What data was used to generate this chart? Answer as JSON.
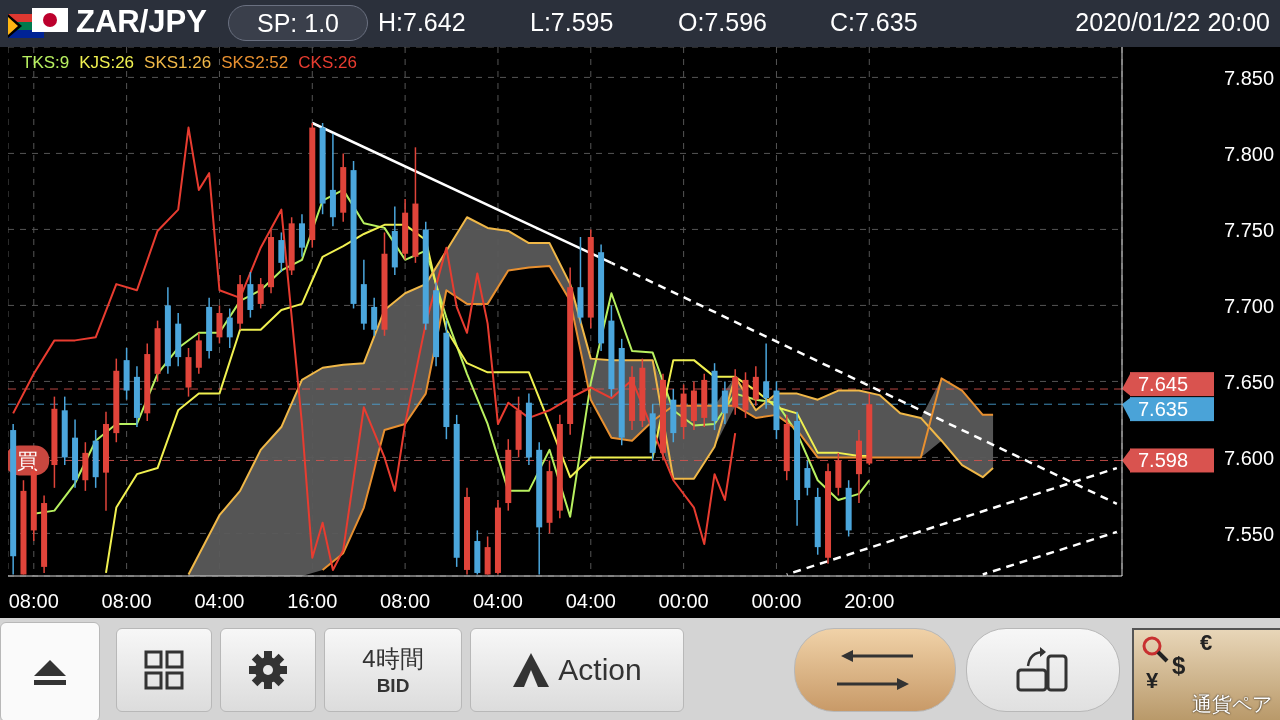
{
  "chart_data": {
    "type": "candlestick",
    "title": "ZAR/JPY",
    "annotations": [
      "SP: 1.0",
      "H:7.642",
      "L:7.595",
      "O:7.596",
      "C:7.635",
      "2020/01/22 20:00",
      {
        "text": "買",
        "y": 7.598
      },
      "4時間",
      "BID",
      "Action",
      "¥",
      "$",
      "€",
      "通貨ペア"
    ],
    "categories": [
      null,
      null,
      "08:00",
      null,
      null,
      null,
      null,
      null,
      null,
      null,
      null,
      "08:00",
      null,
      null,
      null,
      null,
      null,
      null,
      null,
      null,
      "04:00",
      null,
      null,
      null,
      null,
      null,
      null,
      null,
      null,
      "16:00",
      null,
      null,
      null,
      null,
      null,
      null,
      null,
      null,
      "08:00",
      null,
      null,
      null,
      null,
      null,
      null,
      null,
      null,
      "04:00",
      null,
      null,
      null,
      null,
      null,
      null,
      null,
      null,
      "04:00",
      null,
      null,
      null,
      null,
      null,
      null,
      null,
      null,
      "00:00",
      null,
      null,
      null,
      null,
      null,
      null,
      null,
      null,
      "00:00",
      null,
      null,
      null,
      null,
      null,
      null,
      null,
      null,
      "20:00",
      null,
      null,
      null,
      null,
      null,
      null,
      null,
      null,
      null,
      null,
      null,
      null,
      null,
      null,
      null,
      null,
      null,
      null,
      null,
      null,
      null,
      null,
      null,
      null
    ],
    "ylim": [
      7.522,
      7.87
    ],
    "yticks": [
      {
        "value": 7.55,
        "label": "7.550"
      },
      {
        "value": 7.6,
        "label": "7.600"
      },
      {
        "value": 7.65,
        "label": "7.650"
      },
      {
        "value": 7.7,
        "label": "7.700"
      },
      {
        "value": 7.75,
        "label": "7.750"
      },
      {
        "value": 7.8,
        "label": "7.800"
      },
      {
        "value": 7.85,
        "label": "7.850"
      }
    ],
    "grid": true,
    "legend": "top left",
    "ref_lines": [
      {
        "axis": "y",
        "value": 7.645,
        "label": "7.645",
        "color": "#d9534f",
        "line_style": "dashed"
      },
      {
        "axis": "y",
        "value": 7.635,
        "label": "7.635",
        "color": "#4aa3d8",
        "line_style": "dashed"
      },
      {
        "axis": "y",
        "value": 7.598,
        "label": "7.598",
        "color": "#d9534f",
        "line_style": "dashed"
      }
    ],
    "series": [
      {
        "ohlc": [
          [
            7.618,
            7.622,
            7.523,
            7.535
          ],
          [
            7.523,
            7.585,
            7.523,
            7.578
          ],
          [
            7.552,
            7.595,
            7.545,
            7.591
          ],
          [
            7.528,
            7.575,
            7.524,
            7.57
          ],
          [
            7.595,
            7.64,
            7.58,
            7.632
          ],
          [
            7.631,
            7.64,
            7.595,
            7.6
          ],
          [
            7.613,
            7.625,
            7.58,
            7.585
          ],
          [
            7.585,
            7.61,
            7.578,
            7.603
          ],
          [
            7.611,
            7.618,
            7.58,
            7.587
          ],
          [
            7.59,
            7.63,
            7.565,
            7.622
          ],
          [
            7.616,
            7.665,
            7.61,
            7.657
          ],
          [
            7.664,
            7.672,
            7.638,
            7.644
          ],
          [
            7.653,
            7.66,
            7.62,
            7.626
          ],
          [
            7.629,
            7.675,
            7.624,
            7.668
          ],
          [
            7.655,
            7.69,
            7.65,
            7.685
          ],
          [
            7.7,
            7.712,
            7.655,
            7.66
          ],
          [
            7.688,
            7.695,
            7.66,
            7.666
          ],
          [
            7.646,
            7.672,
            7.64,
            7.666
          ],
          [
            7.659,
            7.682,
            7.655,
            7.677
          ],
          [
            7.699,
            7.705,
            7.665,
            7.67
          ],
          [
            7.679,
            7.7,
            7.675,
            7.695
          ],
          [
            7.692,
            7.698,
            7.672,
            7.679
          ],
          [
            7.688,
            7.72,
            7.684,
            7.714
          ],
          [
            7.714,
            7.722,
            7.692,
            7.697
          ],
          [
            7.701,
            7.718,
            7.698,
            7.714
          ],
          [
            7.712,
            7.75,
            7.708,
            7.745
          ],
          [
            7.743,
            7.748,
            7.722,
            7.728
          ],
          [
            7.723,
            7.758,
            7.72,
            7.754
          ],
          [
            7.754,
            7.76,
            7.732,
            7.738
          ],
          [
            7.743,
            7.82,
            7.738,
            7.817
          ],
          [
            7.817,
            7.82,
            7.76,
            7.767
          ],
          [
            7.776,
            7.813,
            7.752,
            7.758
          ],
          [
            7.761,
            7.8,
            7.755,
            7.791
          ],
          [
            7.789,
            7.795,
            7.698,
            7.701
          ],
          [
            7.714,
            7.73,
            7.684,
            7.688
          ],
          [
            7.699,
            7.705,
            7.68,
            7.684
          ],
          [
            7.684,
            7.748,
            7.68,
            7.734
          ],
          [
            7.749,
            7.765,
            7.72,
            7.725
          ],
          [
            7.734,
            7.77,
            7.73,
            7.761
          ],
          [
            7.732,
            7.804,
            7.728,
            7.767
          ],
          [
            7.75,
            7.755,
            7.684,
            7.688
          ],
          [
            7.71,
            7.715,
            7.66,
            7.666
          ],
          [
            7.682,
            7.69,
            7.612,
            7.62
          ],
          [
            7.622,
            7.628,
            7.528,
            7.534
          ],
          [
            7.526,
            7.58,
            7.523,
            7.574
          ],
          [
            7.545,
            7.552,
            7.523,
            7.524
          ],
          [
            7.523,
            7.548,
            7.523,
            7.541
          ],
          [
            7.524,
            7.572,
            7.523,
            7.567
          ],
          [
            7.57,
            7.612,
            7.565,
            7.605
          ],
          [
            7.605,
            7.64,
            7.6,
            7.631
          ],
          [
            7.636,
            7.642,
            7.595,
            7.6
          ],
          [
            7.605,
            7.61,
            7.523,
            7.554
          ],
          [
            7.557,
            7.598,
            7.55,
            7.591
          ],
          [
            7.565,
            7.628,
            7.56,
            7.622
          ],
          [
            7.622,
            7.725,
            7.615,
            7.712
          ],
          [
            7.712,
            7.745,
            7.688,
            7.692
          ],
          [
            7.692,
            7.75,
            7.685,
            7.745
          ],
          [
            7.735,
            7.74,
            7.67,
            7.675
          ],
          [
            7.69,
            7.7,
            7.64,
            7.645
          ],
          [
            7.672,
            7.678,
            7.608,
            7.613
          ],
          [
            7.624,
            7.66,
            7.618,
            7.653
          ],
          [
            7.624,
            7.665,
            7.62,
            7.659
          ],
          [
            7.629,
            7.635,
            7.598,
            7.603
          ],
          [
            7.603,
            7.655,
            7.598,
            7.651
          ],
          [
            7.638,
            7.645,
            7.61,
            7.616
          ],
          [
            7.62,
            7.648,
            7.612,
            7.642
          ],
          [
            7.624,
            7.65,
            7.618,
            7.644
          ],
          [
            7.626,
            7.655,
            7.62,
            7.651
          ],
          [
            7.657,
            7.662,
            7.618,
            7.624
          ],
          [
            7.644,
            7.65,
            7.622,
            7.629
          ],
          [
            7.633,
            7.658,
            7.628,
            7.653
          ],
          [
            7.631,
            7.656,
            7.626,
            7.651
          ],
          [
            7.638,
            7.66,
            7.634,
            7.653
          ],
          [
            7.65,
            7.675,
            7.632,
            7.639
          ],
          [
            7.644,
            7.65,
            7.612,
            7.618
          ],
          [
            7.591,
            7.628,
            7.585,
            7.622
          ],
          [
            7.624,
            7.63,
            7.555,
            7.572
          ],
          [
            7.593,
            7.598,
            7.575,
            7.58
          ],
          [
            7.574,
            7.58,
            7.536,
            7.541
          ],
          [
            7.534,
            7.596,
            7.53,
            7.591
          ],
          [
            7.58,
            7.603,
            7.575,
            7.598
          ],
          [
            7.58,
            7.585,
            7.548,
            7.552
          ],
          [
            7.589,
            7.618,
            7.57,
            7.611
          ],
          [
            7.596,
            7.642,
            7.595,
            7.635
          ],
          null,
          null,
          null,
          null,
          null,
          null,
          null,
          null,
          null,
          null,
          null,
          null,
          null,
          null,
          null,
          null,
          null,
          null,
          null,
          null,
          null,
          null,
          null,
          null
        ]
      },
      {
        "type": "line",
        "name": "TKS:9",
        "color": "#b8f060",
        "values": [
          null,
          null,
          7.563,
          null,
          7.565,
          null,
          7.583,
          null,
          7.611,
          null,
          7.622,
          null,
          7.622,
          null,
          7.655,
          null,
          7.672,
          null,
          7.682,
          null,
          7.682,
          null,
          7.703,
          null,
          7.71,
          null,
          7.723,
          null,
          7.73,
          null,
          7.769,
          null,
          7.776,
          null,
          7.754,
          null,
          7.751,
          null,
          7.73,
          null,
          7.736,
          null,
          7.692,
          null,
          7.655,
          null,
          7.622,
          null,
          7.578,
          null,
          7.578,
          null,
          7.605,
          null,
          7.561,
          null,
          7.649,
          null,
          7.708,
          null,
          7.67,
          null,
          7.669,
          null,
          7.631,
          null,
          7.621,
          null,
          7.622,
          null,
          7.642,
          null,
          7.638,
          null,
          7.636,
          null,
          7.616,
          null,
          7.585,
          null,
          7.572,
          null,
          7.576,
          7.585,
          null,
          null,
          null,
          null,
          null,
          null,
          null,
          null,
          null,
          null,
          null,
          null,
          null,
          null,
          null,
          null,
          null,
          null,
          null,
          null,
          null,
          null,
          null,
          null
        ]
      },
      {
        "type": "line",
        "name": "KJS:26",
        "color": "#f0f050",
        "values": [
          null,
          null,
          null,
          null,
          null,
          null,
          null,
          null,
          null,
          7.524,
          7.567,
          null,
          7.589,
          null,
          7.593,
          null,
          7.631,
          null,
          7.642,
          null,
          7.642,
          null,
          7.684,
          null,
          7.684,
          null,
          7.697,
          null,
          7.701,
          null,
          7.732,
          null,
          7.739,
          null,
          7.747,
          null,
          7.753,
          null,
          7.753,
          null,
          7.743,
          null,
          7.684,
          null,
          7.662,
          null,
          7.656,
          null,
          7.656,
          null,
          7.656,
          null,
          7.622,
          null,
          7.587,
          null,
          7.6,
          null,
          7.6,
          null,
          7.6,
          null,
          7.6,
          null,
          7.664,
          null,
          7.664,
          null,
          7.653,
          null,
          7.653,
          null,
          7.644,
          null,
          7.633,
          null,
          7.629,
          null,
          7.603,
          null,
          7.603,
          null,
          7.601,
          7.601,
          null,
          null,
          null,
          null,
          null,
          null,
          null,
          null,
          null,
          null,
          null,
          null,
          null,
          null,
          null,
          null,
          null,
          null,
          null,
          null,
          null,
          null,
          null,
          null
        ]
      },
      {
        "type": "line",
        "name": "SKS1:26",
        "color": "#f0b848",
        "lower": [
          null,
          null,
          null,
          null,
          null,
          null,
          null,
          null,
          null,
          null,
          null,
          null,
          null,
          null,
          null,
          null,
          null,
          7.522,
          7.522,
          null,
          7.522,
          null,
          7.522,
          null,
          7.522,
          null,
          7.522,
          null,
          7.522,
          null,
          7.526,
          null,
          7.537,
          null,
          7.567,
          null,
          7.618,
          null,
          7.622,
          null,
          7.642,
          null,
          7.71,
          null,
          7.701,
          null,
          7.701,
          null,
          7.723,
          null,
          7.725,
          null,
          7.726,
          null,
          7.703,
          null,
          7.638,
          null,
          7.613,
          null,
          7.611,
          null,
          7.624,
          null,
          7.586,
          null,
          7.586,
          null,
          7.607,
          null,
          7.634,
          null,
          7.626,
          null,
          7.628,
          null,
          7.618,
          null,
          7.6,
          null,
          7.6,
          null,
          7.6,
          null,
          7.6,
          null,
          7.6,
          null,
          7.6,
          null,
          7.611,
          null,
          7.595,
          null,
          7.587,
          7.593,
          null,
          null,
          null,
          null,
          null,
          null,
          null,
          null,
          null,
          null,
          null,
          null
        ],
        "upper": [
          null,
          null,
          null,
          null,
          null,
          null,
          null,
          null,
          null,
          null,
          null,
          null,
          null,
          null,
          null,
          null,
          null,
          7.523,
          7.536,
          null,
          7.562,
          null,
          7.578,
          null,
          7.605,
          null,
          7.62,
          null,
          7.651,
          null,
          7.659,
          null,
          7.661,
          null,
          7.662,
          null,
          7.697,
          null,
          7.708,
          null,
          7.714,
          null,
          7.736,
          null,
          7.758,
          null,
          7.751,
          null,
          7.749,
          null,
          7.741,
          null,
          7.741,
          null,
          7.714,
          null,
          7.665,
          null,
          7.664,
          null,
          7.664,
          null,
          7.664,
          null,
          7.634,
          null,
          7.634,
          null,
          7.634,
          null,
          7.653,
          null,
          7.631,
          null,
          7.642,
          null,
          7.642,
          null,
          7.638,
          null,
          7.644,
          null,
          7.644,
          null,
          7.641,
          null,
          7.629,
          null,
          7.626,
          null,
          7.652,
          null,
          7.644,
          null,
          7.628,
          7.628,
          null,
          null,
          null,
          null,
          null,
          null,
          null,
          null,
          null,
          null,
          null,
          null
        ],
        "values": [
          null,
          null,
          null,
          null,
          null,
          null,
          null,
          null,
          null,
          null,
          null,
          null,
          null,
          null,
          null,
          null,
          null,
          7.523,
          7.536,
          null,
          7.562,
          null,
          7.578,
          null,
          7.605,
          null,
          7.62,
          null,
          7.651,
          null,
          7.659,
          null,
          7.661,
          null,
          7.662,
          null,
          7.697,
          null,
          7.708,
          null,
          7.714,
          null,
          7.736,
          null,
          7.758,
          null,
          7.751,
          null,
          7.749,
          null,
          7.741,
          null,
          7.741,
          null,
          7.714,
          null,
          7.665,
          null,
          7.664,
          null,
          7.664,
          null,
          7.664,
          null,
          7.586,
          null,
          7.586,
          null,
          7.607,
          null,
          7.653,
          null,
          7.631,
          null,
          7.642,
          null,
          7.642,
          null,
          7.638,
          null,
          7.644,
          null,
          7.644,
          null,
          7.641,
          null,
          7.629,
          null,
          7.626,
          null,
          7.611,
          null,
          7.595,
          null,
          7.587,
          7.593,
          null,
          null,
          null,
          null,
          null,
          null,
          null,
          null,
          null,
          null,
          null,
          null
        ]
      },
      {
        "type": "line",
        "name": "SKS2:52",
        "color": "#e89030",
        "values": [
          null,
          null,
          null,
          null,
          null,
          null,
          null,
          null,
          null,
          null,
          null,
          null,
          null,
          null,
          null,
          null,
          null,
          null,
          null,
          null,
          null,
          null,
          null,
          null,
          null,
          null,
          null,
          null,
          null,
          null,
          7.526,
          null,
          7.537,
          null,
          7.567,
          null,
          7.618,
          null,
          7.622,
          null,
          7.642,
          null,
          7.71,
          null,
          7.701,
          null,
          7.701,
          null,
          7.723,
          null,
          7.725,
          null,
          7.726,
          null,
          7.703,
          null,
          7.638,
          null,
          7.613,
          null,
          7.611,
          null,
          7.624,
          null,
          7.634,
          null,
          7.634,
          null,
          7.634,
          null,
          7.634,
          null,
          7.626,
          null,
          7.628,
          null,
          7.618,
          null,
          7.6,
          null,
          7.6,
          null,
          7.6,
          null,
          7.6,
          null,
          7.6,
          null,
          7.6,
          null,
          7.652,
          null,
          7.644,
          null,
          7.628,
          7.628,
          null,
          null,
          null,
          null,
          null,
          null,
          null,
          null,
          null,
          null,
          null,
          null
        ]
      },
      {
        "type": "line",
        "name": "CKS:26",
        "color": "#e83c30",
        "values": [
          7.629,
          null,
          7.655,
          null,
          7.677,
          null,
          7.677,
          null,
          7.679,
          null,
          7.714,
          null,
          7.71,
          null,
          7.749,
          null,
          7.763,
          7.817,
          7.776,
          7.787,
          7.71,
          null,
          7.705,
          null,
          7.738,
          null,
          7.763,
          null,
          7.622,
          7.534,
          7.557,
          7.526,
          7.539,
          null,
          7.633,
          null,
          7.6,
          7.578,
          7.622,
          null,
          7.688,
          null,
          7.738,
          7.699,
          7.682,
          7.721,
          7.688,
          7.622,
          7.636,
          null,
          7.626,
          null,
          7.631,
          null,
          7.639,
          null,
          7.646,
          null,
          7.639,
          null,
          7.651,
          null,
          null,
          null,
          7.585,
          null,
          7.567,
          7.543,
          7.589,
          7.572,
          7.616,
          null,
          null,
          null,
          null,
          null,
          null,
          null,
          null,
          null,
          null,
          null,
          null,
          null,
          null,
          null,
          null,
          null,
          null,
          null,
          null,
          null,
          null,
          null,
          null,
          null,
          null,
          null,
          null,
          null,
          null,
          null,
          null,
          null,
          null,
          null,
          null,
          null
        ]
      },
      {
        "type": "line",
        "color": "#ffffff",
        "line_style": "solid",
        "values": [
          null,
          null,
          null,
          null,
          null,
          null,
          null,
          null,
          null,
          null,
          null,
          null,
          null,
          null,
          null,
          null,
          null,
          null,
          null,
          null,
          null,
          null,
          null,
          null,
          null,
          null,
          null,
          null,
          null,
          7.82,
          null,
          null,
          null,
          null,
          null,
          null,
          null,
          null,
          null,
          null,
          null,
          null,
          null,
          null,
          null,
          null,
          null,
          null,
          null,
          null,
          null,
          null,
          null,
          null,
          null,
          null,
          null,
          null,
          7.728,
          null,
          null,
          null,
          null,
          null,
          null,
          null,
          null,
          null,
          null,
          null,
          null,
          null,
          null,
          null,
          null,
          null,
          null,
          null,
          null,
          null,
          null,
          null,
          null,
          null,
          null,
          null,
          null,
          null,
          null,
          null,
          null,
          null,
          null,
          null,
          null,
          null,
          null,
          null,
          null,
          null,
          null,
          null,
          null,
          null,
          null,
          null,
          null,
          null
        ]
      },
      {
        "type": "line",
        "color": "#ffffff",
        "line_style": "dashed",
        "values": [
          null,
          null,
          null,
          null,
          null,
          null,
          null,
          null,
          null,
          null,
          null,
          null,
          null,
          null,
          null,
          null,
          null,
          null,
          null,
          null,
          null,
          null,
          null,
          null,
          null,
          null,
          null,
          null,
          null,
          null,
          null,
          null,
          null,
          null,
          null,
          null,
          null,
          null,
          null,
          null,
          null,
          null,
          null,
          null,
          null,
          null,
          null,
          null,
          null,
          null,
          null,
          null,
          null,
          null,
          null,
          null,
          null,
          null,
          7.728,
          null,
          null,
          null,
          null,
          null,
          null,
          null,
          null,
          null,
          null,
          null,
          null,
          null,
          null,
          null,
          null,
          null,
          null,
          null,
          null,
          null,
          null,
          null,
          null,
          null,
          null,
          null,
          null,
          null,
          null,
          null,
          null,
          null,
          null,
          null,
          null,
          null,
          null,
          null,
          null,
          null,
          null,
          null,
          null,
          null,
          null,
          null,
          null,
          7.5695
        ]
      },
      {
        "type": "line",
        "color": "#ffffff",
        "line_style": "dashed",
        "values": [
          null,
          null,
          null,
          null,
          null,
          null,
          null,
          null,
          null,
          null,
          null,
          null,
          null,
          null,
          null,
          null,
          null,
          null,
          null,
          null,
          null,
          null,
          null,
          null,
          null,
          null,
          null,
          null,
          null,
          null,
          null,
          null,
          null,
          null,
          null,
          null,
          null,
          null,
          null,
          null,
          null,
          null,
          null,
          null,
          null,
          null,
          null,
          null,
          null,
          null,
          null,
          null,
          null,
          null,
          null,
          null,
          null,
          null,
          null,
          null,
          null,
          null,
          null,
          null,
          null,
          null,
          null,
          null,
          null,
          null,
          null,
          null,
          null,
          null,
          null,
          7.523,
          null,
          null,
          null,
          null,
          null,
          null,
          null,
          null,
          null,
          null,
          null,
          null,
          null,
          null,
          null,
          null,
          null,
          null,
          null,
          null,
          null,
          null,
          null,
          null,
          null,
          null,
          null,
          null,
          null,
          null,
          null,
          7.593
        ]
      },
      {
        "type": "line",
        "color": "#ffffff",
        "line_style": "dashed",
        "values": [
          null,
          null,
          null,
          null,
          null,
          null,
          null,
          null,
          null,
          null,
          null,
          null,
          null,
          null,
          null,
          null,
          null,
          null,
          null,
          null,
          null,
          null,
          null,
          null,
          null,
          null,
          null,
          null,
          null,
          null,
          null,
          null,
          null,
          null,
          null,
          null,
          null,
          null,
          null,
          null,
          null,
          null,
          null,
          null,
          null,
          null,
          null,
          null,
          null,
          null,
          null,
          null,
          null,
          null,
          null,
          null,
          null,
          null,
          null,
          null,
          null,
          null,
          null,
          null,
          null,
          null,
          null,
          null,
          null,
          null,
          null,
          null,
          null,
          null,
          null,
          null,
          null,
          null,
          null,
          null,
          null,
          null,
          null,
          null,
          null,
          null,
          null,
          null,
          null,
          null,
          null,
          null,
          null,
          null,
          7.523,
          null,
          null,
          null,
          null,
          null,
          null,
          null,
          null,
          null,
          null,
          null,
          null,
          7.551
        ]
      }
    ]
  }
}
